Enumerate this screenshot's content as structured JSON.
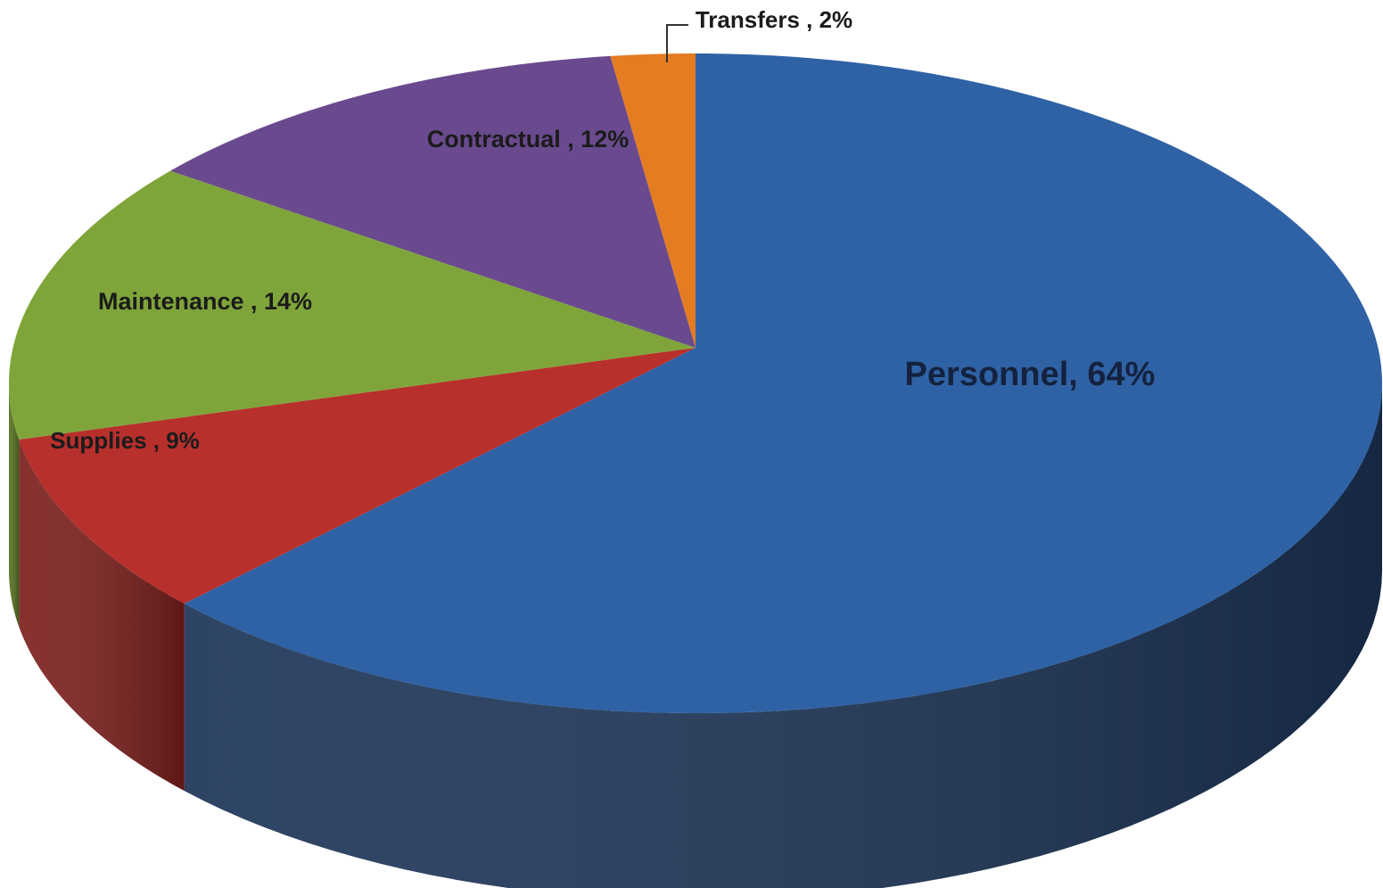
{
  "chart_data": {
    "type": "pie",
    "values": [
      64,
      9,
      14,
      12,
      2
    ],
    "value_labels": [
      "Personnel,   64%",
      "Supplies , 9%",
      "Maintenance , 14%",
      "Contractual , 12%",
      "Transfers , 2%"
    ],
    "colors": [
      "#2f62a5",
      "#b8302c",
      "#7fa53a",
      "#6a4a8e",
      "#e47c22"
    ],
    "side_colors": [
      "#1c3457",
      "#7c1f1c",
      "#55701f",
      "#432c5c",
      "#9a4f12"
    ],
    "start_angle": 0,
    "direction": "clockwise",
    "three_d": true
  }
}
